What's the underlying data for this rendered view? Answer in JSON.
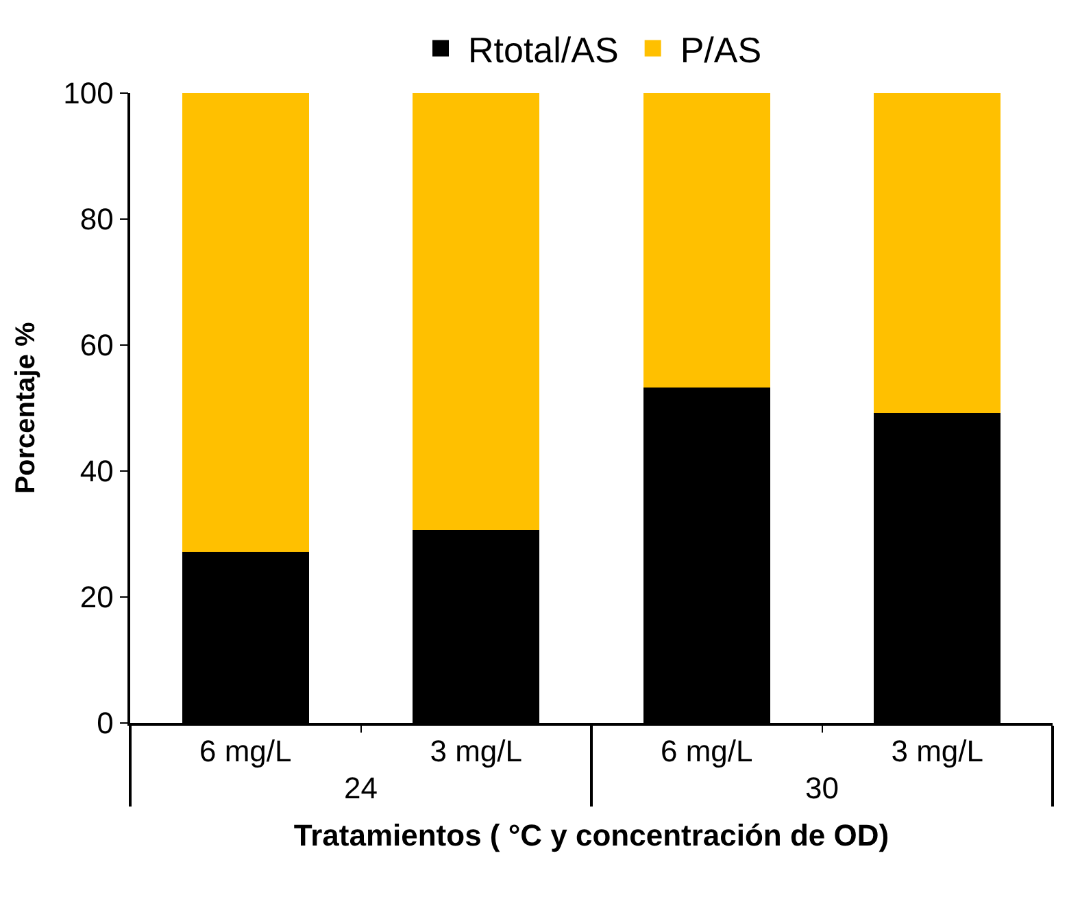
{
  "chart_data": {
    "type": "bar",
    "stacked": true,
    "xlabel": "Tratamientos ( °C y concentración de OD)",
    "ylabel": "Porcentaje %",
    "categories": [
      "6 mg/L",
      "3 mg/L",
      "6 mg/L",
      "3 mg/L"
    ],
    "annotations": [
      "24",
      "30"
    ],
    "series": [
      {
        "name": "Rtotal/AS",
        "color": "#000000",
        "values": [
          27.2,
          30.6,
          53.3,
          49.2
        ]
      },
      {
        "name": "P/AS",
        "color": "#ffc000",
        "values": [
          72.8,
          69.4,
          46.7,
          50.8
        ]
      }
    ],
    "ylim": [
      0,
      100
    ],
    "yticks": [
      0,
      20,
      40,
      60,
      80,
      100
    ],
    "legend": "top"
  }
}
